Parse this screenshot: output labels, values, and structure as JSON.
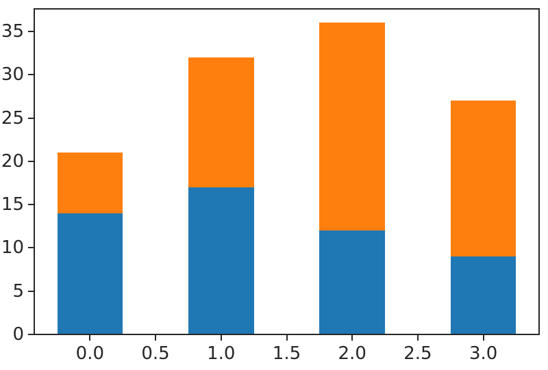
{
  "figure": {
    "background": "#ffffff",
    "axis_color": "#262626",
    "tick_label_color": "#262626"
  },
  "chart_data": {
    "type": "bar",
    "stacked": true,
    "orientation": "vertical",
    "title": "",
    "xlabel": "",
    "ylabel": "",
    "grid": false,
    "legend": "none",
    "x": [
      0,
      1,
      2,
      3
    ],
    "bar_width": 0.5,
    "series": [
      {
        "name": "blue-bottom-series",
        "color": "#1f77b4",
        "values": [
          14,
          17,
          12,
          9
        ]
      },
      {
        "name": "orange-top-series",
        "color": "#ff7f0e",
        "values": [
          7,
          15,
          24,
          18
        ]
      }
    ],
    "totals": [
      21,
      32,
      36,
      27
    ],
    "xlim": [
      -0.425,
      3.425
    ],
    "ylim": [
      0,
      37.6
    ],
    "xticks": {
      "values": [
        0.0,
        0.5,
        1.0,
        1.5,
        2.0,
        2.5,
        3.0
      ],
      "labels": [
        "0.0",
        "0.5",
        "1.0",
        "1.5",
        "2.0",
        "2.5",
        "3.0"
      ]
    },
    "yticks": {
      "values": [
        0,
        5,
        10,
        15,
        20,
        25,
        30,
        35
      ],
      "labels": [
        "0",
        "5",
        "10",
        "15",
        "20",
        "25",
        "30",
        "35"
      ]
    }
  }
}
